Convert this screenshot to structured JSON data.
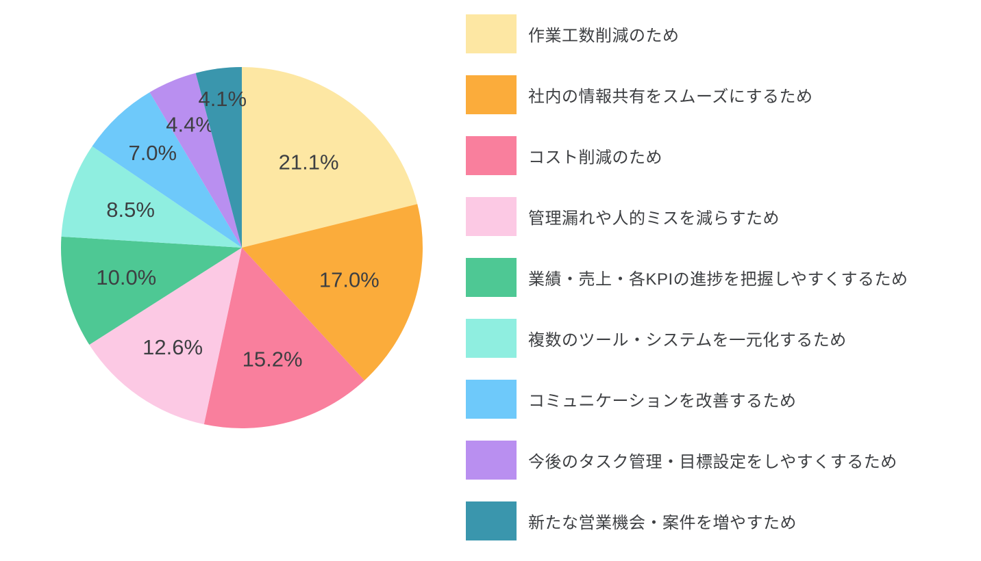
{
  "chart_data": {
    "type": "pie",
    "title": "",
    "legend_position": "right",
    "start_angle_deg": 0,
    "direction": "clockwise",
    "label_format": "percent_inside_slice",
    "background_color": "#ffffff",
    "label_text_color": "#3d3f42",
    "slices": [
      {
        "label": "作業工数削減のため",
        "value": 21.1,
        "display": "21.1%",
        "color": "#FDE7A3"
      },
      {
        "label": "社内の情報共有をスムーズにするため",
        "value": 17.0,
        "display": "17.0%",
        "color": "#FBAC3B"
      },
      {
        "label": "コスト削減のため",
        "value": 15.2,
        "display": "15.2%",
        "color": "#F97F9D"
      },
      {
        "label": "管理漏れや人的ミスを減らすため",
        "value": 12.6,
        "display": "12.6%",
        "color": "#FCC9E4"
      },
      {
        "label": "業績・売上・各KPIの進捗を把握しやすくするため",
        "value": 10.0,
        "display": "10.0%",
        "color": "#4EC894"
      },
      {
        "label": "複数のツール・システムを一元化するため",
        "value": 8.5,
        "display": "8.5%",
        "color": "#8FEEE0"
      },
      {
        "label": "コミュニケーションを改善するため",
        "value": 7.0,
        "display": "7.0%",
        "color": "#6EC9FA"
      },
      {
        "label": "今後のタスク管理・目標設定をしやすくするため",
        "value": 4.4,
        "display": "4.4%",
        "color": "#B98FF0"
      },
      {
        "label": "新たな営業機会・案件を増やすため",
        "value": 4.1,
        "display": "4.1%",
        "color": "#3A96AD"
      }
    ]
  }
}
